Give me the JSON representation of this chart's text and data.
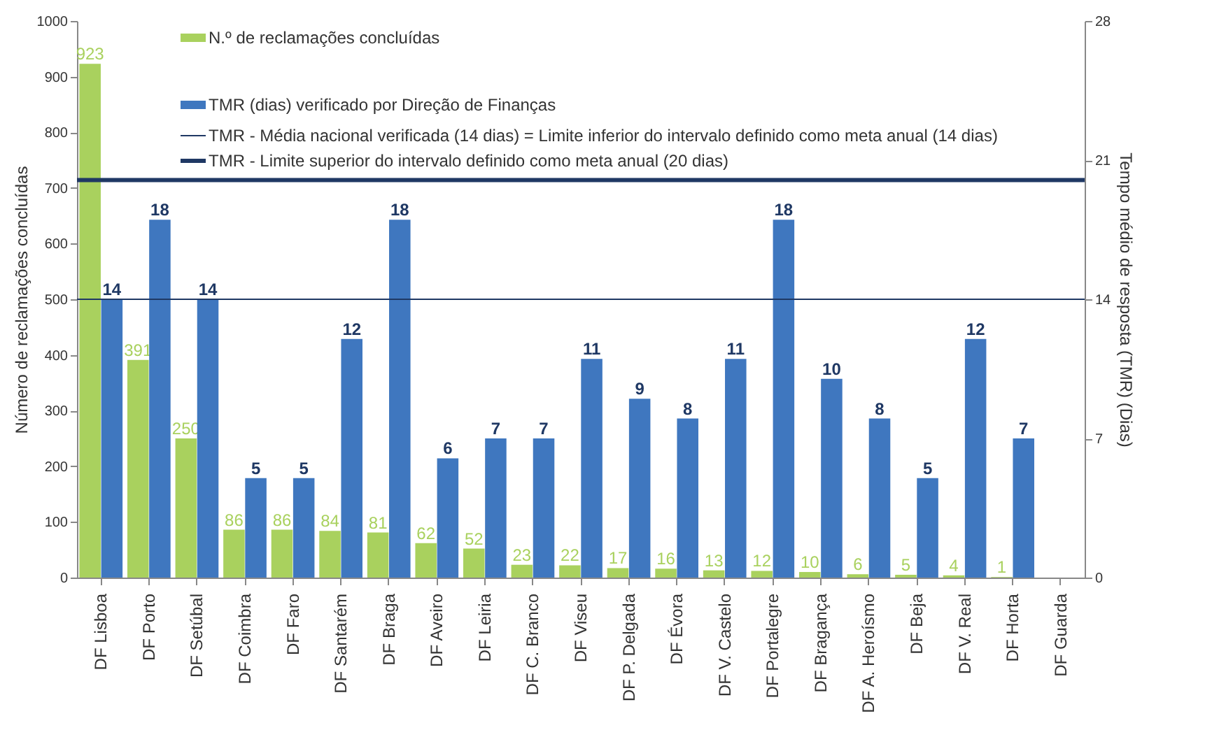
{
  "chart_data": {
    "type": "bar",
    "categories": [
      "DF Lisboa",
      "DF Porto",
      "DF Setúbal",
      "DF Coimbra",
      "DF Faro",
      "DF Santarém",
      "DF Braga",
      "DF Aveiro",
      "DF Leiria",
      "DF C. Branco",
      "DF Viseu",
      "DF P. Delgada",
      "DF Évora",
      "DF V. Castelo",
      "DF Portalegre",
      "DF Bragança",
      "DF A. Heroísmo",
      "DF Beja",
      "DF V. Real",
      "DF Horta",
      "DF Guarda"
    ],
    "series": [
      {
        "name": "N.º de reclamações concluídas",
        "color": "#a9d15e",
        "values": [
          923,
          391,
          250,
          86,
          86,
          84,
          81,
          62,
          52,
          23,
          22,
          17,
          16,
          13,
          12,
          10,
          6,
          5,
          4,
          1,
          null
        ]
      },
      {
        "name": "TMR (dias) verificado por Direção de Finanças",
        "color": "#3f77bf",
        "axis": "y2",
        "values": [
          14,
          18,
          14,
          5,
          5,
          12,
          18,
          6,
          7,
          7,
          11,
          9,
          8,
          11,
          18,
          10,
          8,
          5,
          12,
          7,
          null
        ]
      }
    ],
    "ylabel": "Número de reclamações concluídas",
    "y2label": "Tempo médio de resposta (TMR) (Dias)",
    "ylim": [
      0,
      1000
    ],
    "yticks": [
      0,
      100,
      200,
      300,
      400,
      500,
      600,
      700,
      800,
      900,
      1000
    ],
    "y2lim": [
      0,
      28
    ],
    "y2ticks": [
      0,
      7,
      14,
      21,
      28
    ],
    "ref_lines": [
      {
        "axis": "y2",
        "value": 14,
        "label": "TMR - Média nacional verificada (14 dias) = Limite inferior do intervalo definido como meta anual (14 dias)",
        "color": "#1f3864",
        "line_style": "solid"
      },
      {
        "axis": "y2",
        "value": 20,
        "label": "TMR - Limite superior do intervalo definido como meta anual (20 dias)",
        "color": "#1f3864",
        "line_style": "solid"
      }
    ],
    "data_labels": true,
    "grid": false,
    "legend": "top"
  }
}
